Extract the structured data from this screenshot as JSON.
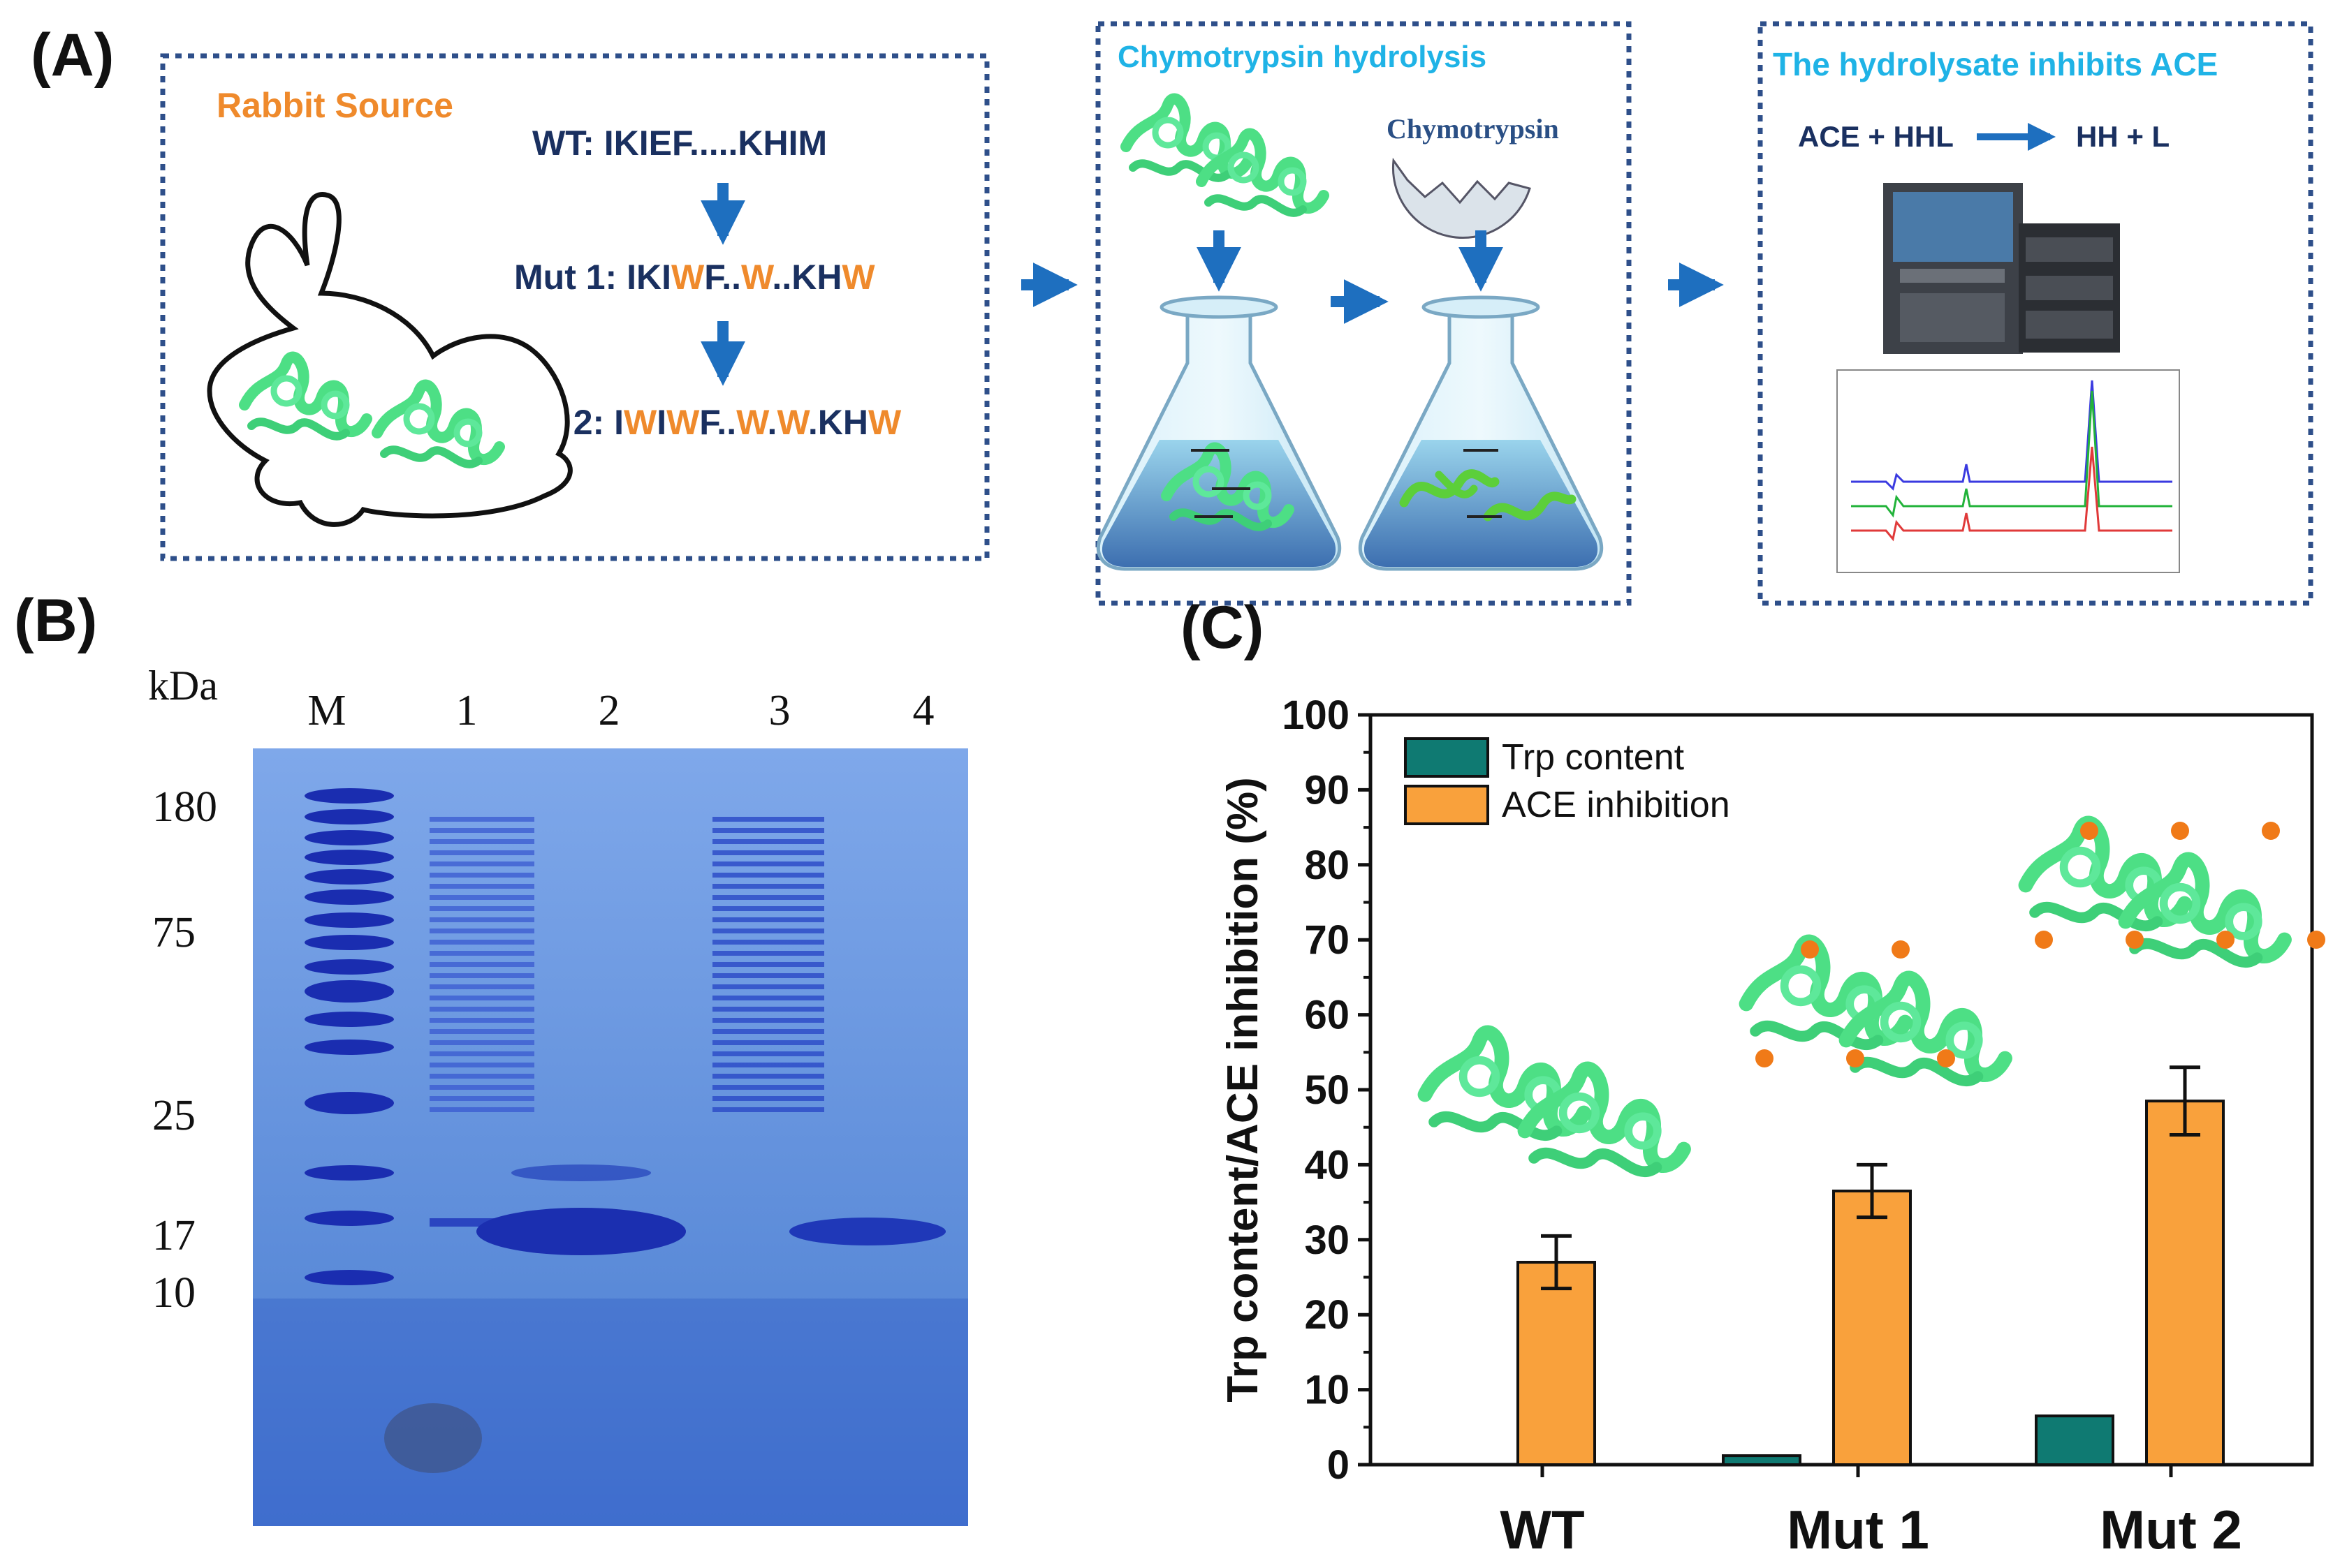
{
  "panel_a": {
    "label": "(A)",
    "source_title": "Rabbit Source",
    "wt": "WT: IKIEF.....KHIM",
    "mut1": [
      {
        "t": "Mut 1: IKI",
        "h": false
      },
      {
        "t": "W",
        "h": true
      },
      {
        "t": "F..",
        "h": false
      },
      {
        "t": "W",
        "h": true
      },
      {
        "t": "..KH",
        "h": false
      },
      {
        "t": "W",
        "h": true
      }
    ],
    "mut2": [
      {
        "t": "Mut 2: I",
        "h": false
      },
      {
        "t": "W",
        "h": true
      },
      {
        "t": "I",
        "h": false
      },
      {
        "t": "W",
        "h": true
      },
      {
        "t": "F..",
        "h": false
      },
      {
        "t": "W",
        "h": true
      },
      {
        "t": ".",
        "h": false
      },
      {
        "t": "W",
        "h": true
      },
      {
        "t": ".KH",
        "h": false
      },
      {
        "t": "W",
        "h": true
      }
    ],
    "hydrolysis_title": "Chymotrypsin hydrolysis",
    "enzyme_label": "Chymotrypsin",
    "ace_title": "The hydrolysate inhibits ACE",
    "reaction_left": "ACE + HHL",
    "reaction_right": "HH + L"
  },
  "panel_b": {
    "label": "(B)",
    "unit": "kDa",
    "lanes": [
      "M",
      "1",
      "2",
      "3",
      "4"
    ],
    "markers": [
      "180",
      "75",
      "25",
      "17",
      "10"
    ]
  },
  "panel_c": {
    "label": "(C)"
  },
  "chart_data": {
    "type": "bar",
    "categories": [
      "WT",
      "Mut 1",
      "Mut 2"
    ],
    "series": [
      {
        "name": "Trp content",
        "values": [
          0,
          1.2,
          6.5
        ],
        "errors": [
          0,
          0,
          0
        ],
        "color": "#0f7a72"
      },
      {
        "name": "ACE inhibition",
        "values": [
          27.0,
          36.5,
          48.5
        ],
        "errors": [
          3.5,
          3.5,
          4.5
        ],
        "color": "#f9a13c"
      }
    ],
    "ylabel": "Trp content/ACE inhibition (%)",
    "ylim": [
      0,
      100
    ],
    "yticks": [
      "0",
      "10",
      "20",
      "30",
      "40",
      "50",
      "60",
      "70",
      "80",
      "90",
      "100"
    ],
    "legend_position": "top-left",
    "grid": false
  },
  "colors": {
    "box": "#2e4f8a",
    "navy": "#1a3060",
    "orange": "#ef8a2c",
    "cyan": "#1fb3e6",
    "arrow": "#1e6fbf",
    "protein": "#4ddf85",
    "gel": "#5a8ad8"
  }
}
